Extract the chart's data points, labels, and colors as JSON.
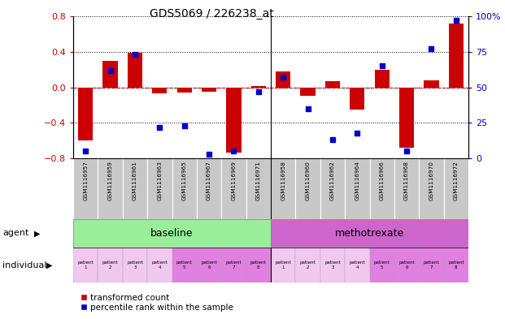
{
  "title": "GDS5069 / 226238_at",
  "gsm_labels": [
    "GSM1116957",
    "GSM1116959",
    "GSM1116961",
    "GSM1116963",
    "GSM1116965",
    "GSM1116967",
    "GSM1116969",
    "GSM1116971",
    "GSM1116958",
    "GSM1116960",
    "GSM1116962",
    "GSM1116964",
    "GSM1116966",
    "GSM1116968",
    "GSM1116970",
    "GSM1116972"
  ],
  "bar_values": [
    -0.6,
    0.3,
    0.39,
    -0.07,
    -0.06,
    -0.05,
    -0.74,
    0.01,
    0.18,
    -0.1,
    0.07,
    -0.25,
    0.2,
    -0.68,
    0.08,
    0.72
  ],
  "dot_values": [
    5,
    62,
    73,
    22,
    23,
    3,
    5,
    47,
    57,
    35,
    13,
    18,
    65,
    5,
    77,
    97
  ],
  "ylim_left": [
    -0.8,
    0.8
  ],
  "ylim_right": [
    0,
    100
  ],
  "yticks_left": [
    -0.8,
    -0.4,
    0.0,
    0.4,
    0.8
  ],
  "yticks_right": [
    0,
    25,
    50,
    75,
    100
  ],
  "bar_color": "#cc0000",
  "dot_color": "#0000cc",
  "baseline_color": "#99ee99",
  "methotrexate_color": "#cc66cc",
  "gsm_bg_color": "#c8c8c8",
  "patient_labels": [
    "patient\n1",
    "patient\n2",
    "patient\n3",
    "patient\n4",
    "patient\n5",
    "patient\n6",
    "patient\n7",
    "patient\n8",
    "patient\n1",
    "patient\n2",
    "patient\n3",
    "patient\n4",
    "patient\n5",
    "patient\n6",
    "patient\n7",
    "patient\n8"
  ],
  "patient_bg_light": "#f0c8f0",
  "patient_bg_dark": "#e080e0",
  "agent_row_label": "agent",
  "individual_row_label": "individual",
  "legend_bar_label": "transformed count",
  "legend_dot_label": "percentile rank within the sample",
  "n": 16
}
